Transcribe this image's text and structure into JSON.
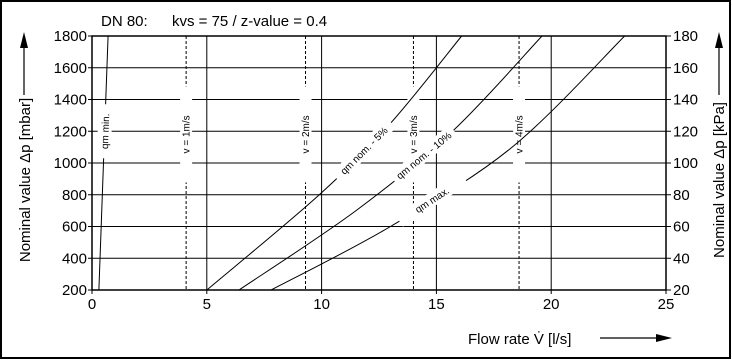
{
  "chart_data": {
    "type": "line",
    "title": "DN 80:",
    "subtitle": "kvs = 75 / z-value = 0.4",
    "xlabel": "Flow rate V̇ [l/s]",
    "ylabel_left": "Nominal value Δp [mbar]",
    "ylabel_right": "Nominal value Δp [kPa]",
    "xlim": [
      0,
      25
    ],
    "ylim": [
      200,
      1800
    ],
    "ylim_right": [
      20,
      180
    ],
    "x_ticks": [
      0,
      5,
      10,
      15,
      20,
      25
    ],
    "y_ticks": [
      200,
      400,
      600,
      800,
      1000,
      1200,
      1400,
      1600,
      1800
    ],
    "y_ticks_right": [
      20,
      40,
      60,
      80,
      100,
      120,
      140,
      160,
      180
    ],
    "grid": true,
    "series": [
      {
        "name": "qm min.",
        "x": [
          0.3,
          0.5,
          0.7
        ],
        "y": [
          200,
          1000,
          1800
        ]
      },
      {
        "name": "qm nom. - 5%",
        "x": [
          5.0,
          9.9,
          13.0,
          16.1
        ],
        "y": [
          200,
          800,
          1250,
          1800
        ]
      },
      {
        "name": "qm nom. - 10%",
        "x": [
          6.4,
          11.5,
          15.7,
          19.6
        ],
        "y": [
          200,
          700,
          1200,
          1800
        ]
      },
      {
        "name": "qm max.",
        "x": [
          7.8,
          13.0,
          18.3,
          23.2
        ],
        "y": [
          200,
          600,
          1100,
          1800
        ]
      }
    ],
    "velocity_lines": [
      {
        "label": "v = 1m/s",
        "x": 4.1
      },
      {
        "label": "v = 2m/s",
        "x": 9.3
      },
      {
        "label": "v = 3m/s",
        "x": 14.0
      },
      {
        "label": "v = 4m/s",
        "x": 18.6
      }
    ]
  }
}
